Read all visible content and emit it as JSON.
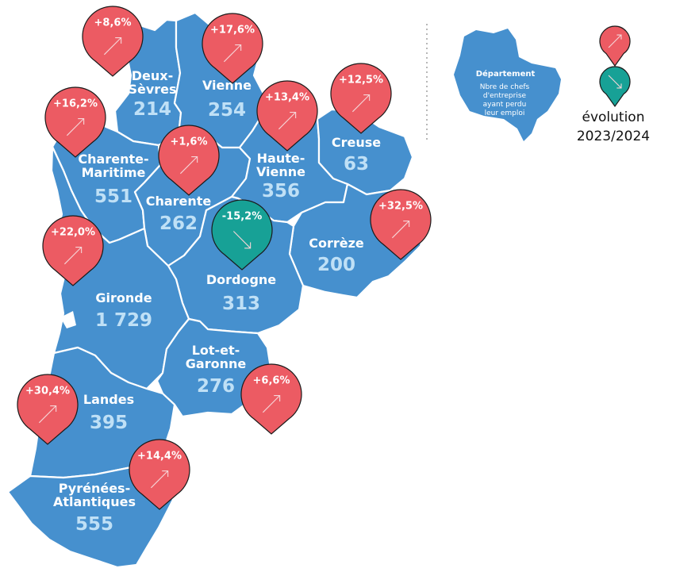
{
  "colors": {
    "region": "#4690ce",
    "border": "#ffffff",
    "increase": "#ec5b63",
    "decrease": "#17a196",
    "value_text": "#bfe0f6"
  },
  "departments": [
    {
      "id": "deux-sevres",
      "name_lines": [
        "Deux-",
        "Sèvres"
      ],
      "value": "214",
      "evolution": "+8,6%",
      "trend": "up"
    },
    {
      "id": "vienne",
      "name_lines": [
        "Vienne"
      ],
      "value": "254",
      "evolution": "+17,6%",
      "trend": "up"
    },
    {
      "id": "charente-maritime",
      "name_lines": [
        "Charente-",
        "Maritime"
      ],
      "value": "551",
      "evolution": "+16,2%",
      "trend": "up"
    },
    {
      "id": "charente",
      "name_lines": [
        "Charente"
      ],
      "value": "262",
      "evolution": "+1,6%",
      "trend": "up"
    },
    {
      "id": "haute-vienne",
      "name_lines": [
        "Haute-",
        "Vienne"
      ],
      "value": "356",
      "evolution": "+13,4%",
      "trend": "up"
    },
    {
      "id": "creuse",
      "name_lines": [
        "Creuse"
      ],
      "value": "63",
      "evolution": "+12,5%",
      "trend": "up"
    },
    {
      "id": "correze",
      "name_lines": [
        "Corrèze"
      ],
      "value": "200",
      "evolution": "+32,5%",
      "trend": "up"
    },
    {
      "id": "dordogne",
      "name_lines": [
        "Dordogne"
      ],
      "value": "313",
      "evolution": "-15,2%",
      "trend": "down"
    },
    {
      "id": "gironde",
      "name_lines": [
        "Gironde"
      ],
      "value": "1 729",
      "evolution": "+22,0%",
      "trend": "up"
    },
    {
      "id": "lot-et-garonne",
      "name_lines": [
        "Lot-et-",
        "Garonne"
      ],
      "value": "276",
      "evolution": "+6,6%",
      "trend": "up"
    },
    {
      "id": "landes",
      "name_lines": [
        "Landes"
      ],
      "value": "395",
      "evolution": "+30,4%",
      "trend": "up"
    },
    {
      "id": "pyrenees-atlantiques",
      "name_lines": [
        "Pyrénées-",
        "Atlantiques"
      ],
      "value": "555",
      "evolution": "+14,4%",
      "trend": "up"
    }
  ],
  "legend": {
    "title": "Département",
    "subtitle_lines": [
      "Nbre de chefs",
      "d'entreprise",
      "ayant perdu",
      "leur emploi"
    ],
    "evolution_label_lines": [
      "évolution",
      "2023/2024"
    ],
    "markers": [
      {
        "trend": "up",
        "icon": "arrow-up-right-icon"
      },
      {
        "trend": "down",
        "icon": "arrow-down-right-icon"
      }
    ]
  }
}
